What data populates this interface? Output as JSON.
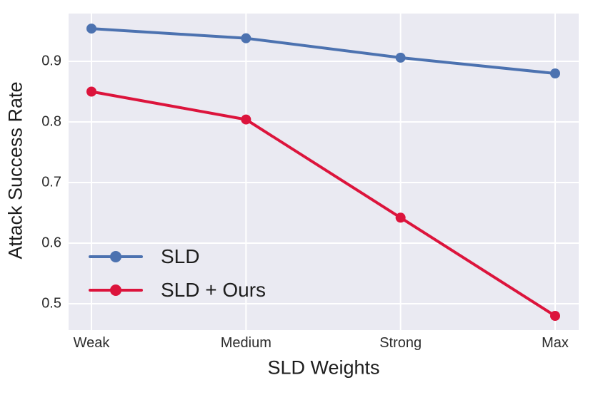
{
  "figure": {
    "background_color": "#ffffff"
  },
  "chart_data": {
    "type": "line",
    "title": "",
    "xlabel": "SLD Weights",
    "ylabel": "Attack Success Rate",
    "categories": [
      "Weak",
      "Medium",
      "Strong",
      "Max"
    ],
    "series": [
      {
        "name": "SLD",
        "color": "#4C72B0",
        "values": [
          0.954,
          0.938,
          0.906,
          0.88
        ]
      },
      {
        "name": "SLD + Ours",
        "color": "#DC143C",
        "values": [
          0.85,
          0.804,
          0.642,
          0.48
        ]
      }
    ],
    "yticks": [
      0.5,
      0.6,
      0.7,
      0.8,
      0.9
    ],
    "ytick_labels": [
      "0.5",
      "0.6",
      "0.7",
      "0.8",
      "0.9"
    ],
    "ylim": [
      0.4565,
      0.9788
    ],
    "grid": true,
    "grid_color": "#ffffff",
    "plot_background": "#EAEAF2",
    "legend_position": "lower-left",
    "marker": "circle",
    "line_width": 4,
    "marker_radius": 7
  }
}
